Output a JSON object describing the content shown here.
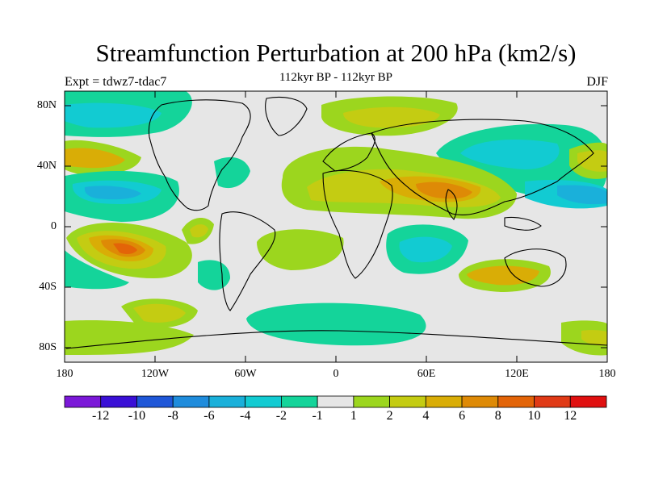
{
  "title": "Streamfunction Perturbation at 200 hPa (km2/s)",
  "subtitle": "112kyr BP - 112kyr BP",
  "left_label": "Expt = tdwz7-tdac7",
  "right_label": "DJF",
  "lat_ticks": [
    "80N",
    "40N",
    "0",
    "40S",
    "80S"
  ],
  "lon_ticks": [
    "180",
    "120W",
    "60W",
    "0",
    "60E",
    "120E",
    "180"
  ],
  "colorbar": {
    "labels": [
      "-12",
      "-10",
      "-8",
      "-6",
      "-4",
      "-2",
      "-1",
      "1",
      "2",
      "4",
      "6",
      "8",
      "10",
      "12"
    ],
    "colors": [
      "#7b18d8",
      "#3a10d6",
      "#1f57d8",
      "#1f8cdc",
      "#1ab0da",
      "#12cbd2",
      "#14d49a",
      "#e6e6e6",
      "#9cd61e",
      "#c4cc12",
      "#d9ad06",
      "#de8a06",
      "#e36408",
      "#e03a16",
      "#e01010"
    ]
  }
}
